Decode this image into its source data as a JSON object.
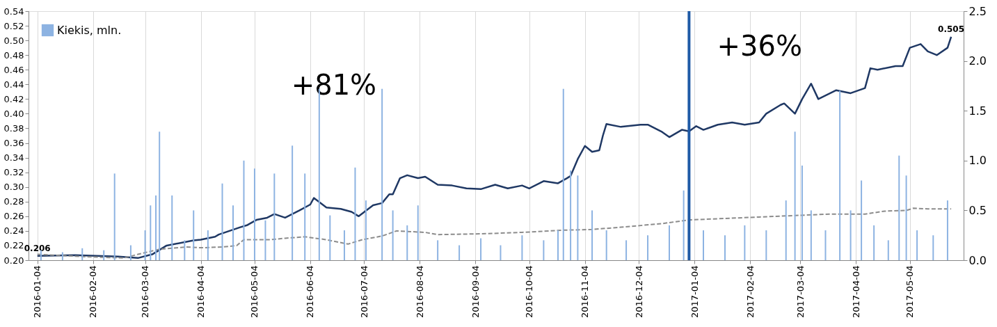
{
  "chart_data": {
    "type": "line",
    "xlim": [
      "2016-01-01",
      "2017-06-01"
    ],
    "xticks": [
      "2016-01-04",
      "2016-02-04",
      "2016-03-04",
      "2016-04-04",
      "2016-05-04",
      "2016-06-04",
      "2016-07-04",
      "2016-08-04",
      "2016-09-04",
      "2016-10-04",
      "2016-11-04",
      "2016-12-04",
      "2017-01-04",
      "2017-02-04",
      "2017-03-04",
      "2017-04-04",
      "2017-05-04"
    ],
    "ylim": [
      0.2,
      0.54
    ],
    "yticks": [
      {
        "value": 0.2,
        "label": "0.20"
      },
      {
        "value": 0.22,
        "label": "0.22"
      },
      {
        "value": 0.24,
        "label": "0.24"
      },
      {
        "value": 0.26,
        "label": "0.26"
      },
      {
        "value": 0.28,
        "label": "0.28"
      },
      {
        "value": 0.3,
        "label": "0.30"
      },
      {
        "value": 0.32,
        "label": "0.32"
      },
      {
        "value": 0.34,
        "label": "0.34"
      },
      {
        "value": 0.36,
        "label": "0.36"
      },
      {
        "value": 0.38,
        "label": "0.38"
      },
      {
        "value": 0.4,
        "label": "0.40"
      },
      {
        "value": 0.42,
        "label": "0.42"
      },
      {
        "value": 0.44,
        "label": "0.44"
      },
      {
        "value": 0.46,
        "label": "0.46"
      },
      {
        "value": 0.48,
        "label": "0.48"
      },
      {
        "value": 0.5,
        "label": "0.50"
      },
      {
        "value": 0.52,
        "label": "0.52"
      },
      {
        "value": 0.54,
        "label": "0.54"
      }
    ],
    "y2lim": [
      0,
      2.5
    ],
    "y2ticks": [
      {
        "value": 0,
        "label": "0.0"
      },
      {
        "value": 0.5,
        "label": "0.5"
      },
      {
        "value": 1,
        "label": "1.0"
      },
      {
        "value": 1.5,
        "label": "1.5"
      },
      {
        "value": 2,
        "label": "2.0"
      },
      {
        "value": 2.5,
        "label": "2.5"
      }
    ],
    "grid": "x",
    "legend": "top left",
    "series": [
      {
        "name": "Kiekis, mln.",
        "type": "bar",
        "axis": "y2",
        "color": "#8db3e2",
        "x": [
          "2016-01-06",
          "2016-01-18",
          "2016-01-29",
          "2016-02-10",
          "2016-02-16",
          "2016-02-25",
          "2016-03-04",
          "2016-03-07",
          "2016-03-10",
          "2016-03-12",
          "2016-03-19",
          "2016-03-26",
          "2016-03-31",
          "2016-04-08",
          "2016-04-16",
          "2016-04-22",
          "2016-04-28",
          "2016-05-04",
          "2016-05-10",
          "2016-05-15",
          "2016-05-25",
          "2016-06-01",
          "2016-06-09",
          "2016-06-15",
          "2016-06-23",
          "2016-06-29",
          "2016-07-05",
          "2016-07-14",
          "2016-07-20",
          "2016-07-28",
          "2016-08-03",
          "2016-08-14",
          "2016-08-26",
          "2016-09-07",
          "2016-09-18",
          "2016-09-30",
          "2016-10-12",
          "2016-10-20",
          "2016-10-23",
          "2016-10-27",
          "2016-10-31",
          "2016-11-08",
          "2016-11-16",
          "2016-11-27",
          "2016-12-09",
          "2016-12-21",
          "2016-12-29",
          "2017-01-09",
          "2017-01-21",
          "2017-02-01",
          "2017-02-13",
          "2017-02-24",
          "2017-03-01",
          "2017-03-05",
          "2017-03-10",
          "2017-03-18",
          "2017-03-26",
          "2017-04-01",
          "2017-04-07",
          "2017-04-14",
          "2017-04-22",
          "2017-04-28",
          "2017-05-02",
          "2017-05-08",
          "2017-05-17",
          "2017-05-25"
        ],
        "values": [
          0.1,
          0.08,
          0.12,
          0.1,
          0.87,
          0.15,
          0.3,
          0.55,
          0.65,
          1.29,
          0.65,
          0.2,
          0.5,
          0.3,
          0.77,
          0.55,
          1.0,
          0.92,
          0.4,
          0.87,
          1.15,
          0.87,
          1.72,
          0.45,
          0.3,
          0.93,
          0.6,
          1.72,
          0.5,
          0.35,
          0.55,
          0.2,
          0.15,
          0.22,
          0.15,
          0.25,
          0.2,
          0.3,
          1.72,
          0.9,
          0.85,
          0.5,
          0.3,
          0.2,
          0.25,
          0.35,
          0.7,
          0.3,
          0.25,
          0.35,
          0.3,
          0.6,
          1.29,
          0.95,
          0.5,
          0.3,
          1.7,
          0.5,
          0.8,
          0.35,
          0.2,
          1.05,
          0.85,
          0.3,
          0.25,
          0.6
        ]
      },
      {
        "color": "#1f3864",
        "line_style": "solid",
        "x": [
          "2016-01-04",
          "2016-01-25",
          "2016-02-18",
          "2016-02-29",
          "2016-03-08",
          "2016-03-16",
          "2016-03-31",
          "2016-04-04",
          "2016-04-12",
          "2016-04-14",
          "2016-04-26",
          "2016-04-30",
          "2016-05-05",
          "2016-05-11",
          "2016-05-15",
          "2016-05-21",
          "2016-05-29",
          "2016-06-04",
          "2016-06-06",
          "2016-06-13",
          "2016-06-21",
          "2016-06-27",
          "2016-07-01",
          "2016-07-09",
          "2016-07-14",
          "2016-07-18",
          "2016-07-20",
          "2016-07-24",
          "2016-07-28",
          "2016-08-03",
          "2016-08-07",
          "2016-08-14",
          "2016-08-22",
          "2016-08-30",
          "2016-09-07",
          "2016-09-15",
          "2016-09-22",
          "2016-09-30",
          "2016-10-04",
          "2016-10-12",
          "2016-10-20",
          "2016-10-25",
          "2016-10-27",
          "2016-10-31",
          "2016-11-04",
          "2016-11-08",
          "2016-11-12",
          "2016-11-14",
          "2016-11-16",
          "2016-11-24",
          "2016-12-05",
          "2016-12-09",
          "2016-12-17",
          "2016-12-21",
          "2016-12-28",
          "2017-01-01",
          "2017-01-05",
          "2017-01-09",
          "2017-01-17",
          "2017-01-25",
          "2017-02-01",
          "2017-02-09",
          "2017-02-13",
          "2017-02-21",
          "2017-02-23",
          "2017-03-01",
          "2017-03-05",
          "2017-03-10",
          "2017-03-14",
          "2017-03-24",
          "2017-04-01",
          "2017-04-09",
          "2017-04-12",
          "2017-04-16",
          "2017-04-26",
          "2017-04-30",
          "2017-05-04",
          "2017-05-10",
          "2017-05-14",
          "2017-05-19",
          "2017-05-25",
          "2017-05-27"
        ],
        "values": [
          0.206,
          0.207,
          0.205,
          0.203,
          0.208,
          0.22,
          0.227,
          0.228,
          0.232,
          0.235,
          0.245,
          0.248,
          0.255,
          0.258,
          0.263,
          0.258,
          0.268,
          0.276,
          0.285,
          0.272,
          0.27,
          0.266,
          0.26,
          0.275,
          0.278,
          0.29,
          0.29,
          0.312,
          0.316,
          0.312,
          0.314,
          0.303,
          0.302,
          0.298,
          0.297,
          0.303,
          0.298,
          0.302,
          0.298,
          0.308,
          0.305,
          0.312,
          0.315,
          0.338,
          0.356,
          0.348,
          0.35,
          0.37,
          0.386,
          0.382,
          0.385,
          0.385,
          0.375,
          0.368,
          0.378,
          0.376,
          0.383,
          0.378,
          0.385,
          0.388,
          0.385,
          0.388,
          0.4,
          0.412,
          0.414,
          0.4,
          0.42,
          0.441,
          0.42,
          0.432,
          0.428,
          0.435,
          0.462,
          0.46,
          0.465,
          0.465,
          0.49,
          0.495,
          0.485,
          0.48,
          0.49,
          0.505
        ]
      },
      {
        "color": "#8c8c8c",
        "line_style": "dashed",
        "x": [
          "2016-01-04",
          "2016-01-29",
          "2016-02-21",
          "2016-02-29",
          "2016-03-12",
          "2016-03-27",
          "2016-04-04",
          "2016-04-16",
          "2016-04-24",
          "2016-04-28",
          "2016-05-13",
          "2016-05-21",
          "2016-06-01",
          "2016-06-13",
          "2016-06-25",
          "2016-07-03",
          "2016-07-14",
          "2016-07-22",
          "2016-08-07",
          "2016-08-14",
          "2016-09-07",
          "2016-09-30",
          "2016-10-23",
          "2016-11-08",
          "2016-11-24",
          "2016-12-17",
          "2017-01-01",
          "2017-01-21",
          "2017-02-09",
          "2017-03-01",
          "2017-03-20",
          "2017-04-09",
          "2017-04-20",
          "2017-05-02",
          "2017-05-06",
          "2017-05-14",
          "2017-05-27"
        ],
        "values": [
          0.208,
          0.205,
          0.203,
          0.208,
          0.215,
          0.218,
          0.217,
          0.218,
          0.22,
          0.228,
          0.228,
          0.23,
          0.232,
          0.228,
          0.222,
          0.228,
          0.233,
          0.24,
          0.238,
          0.235,
          0.236,
          0.238,
          0.241,
          0.242,
          0.245,
          0.25,
          0.255,
          0.257,
          0.259,
          0.261,
          0.263,
          0.263,
          0.267,
          0.268,
          0.271,
          0.27,
          0.27
        ]
      }
    ],
    "ref_lines": [
      {
        "axis": "x",
        "value": "2017-01-01",
        "color": "#1f5aa6"
      }
    ],
    "annotations": [
      "+81%",
      "+36%",
      {
        "text": "0.206",
        "x": "2016-01-04",
        "y": 0.206
      },
      {
        "text": "0.505",
        "x": "2017-05-27",
        "y": 0.505
      }
    ]
  }
}
